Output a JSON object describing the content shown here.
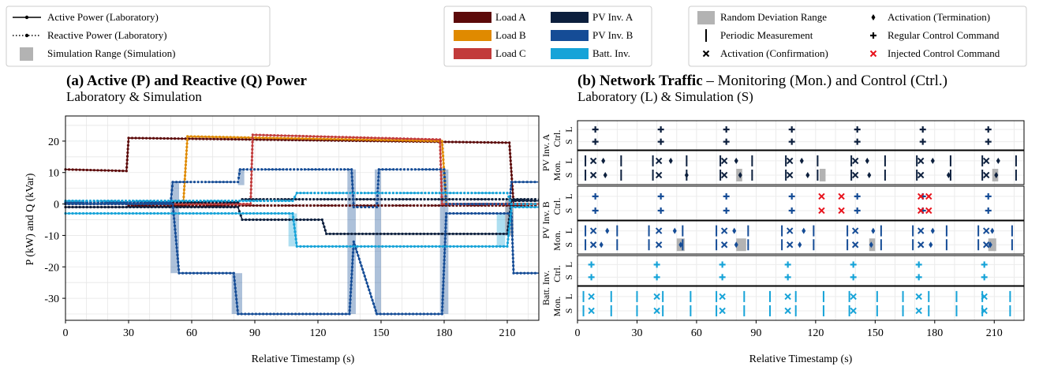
{
  "colors": {
    "load_a": "#5c0a0a",
    "load_b": "#e08a00",
    "load_c": "#c23b3b",
    "pv_a": "#0c1f3d",
    "pv_b": "#154c96",
    "batt": "#16a3d8",
    "range_gray": "#b3b3b3",
    "injected": "#e8121c"
  },
  "legend1": [
    {
      "label": "Active Power (Laboratory)",
      "icon": "solid-line-dot"
    },
    {
      "label": "Reactive Power (Laboratory)",
      "icon": "dotted-line-dot"
    },
    {
      "label": "Simulation Range (Simulation)",
      "icon": "gray-square"
    }
  ],
  "legend2": [
    {
      "label": "Load A",
      "color": "#5c0a0a"
    },
    {
      "label": "Load B",
      "color": "#e08a00"
    },
    {
      "label": "Load C",
      "color": "#c23b3b"
    },
    {
      "label": "PV Inv. A",
      "color": "#0c1f3d"
    },
    {
      "label": "PV Inv. B",
      "color": "#154c96"
    },
    {
      "label": "Batt. Inv.",
      "color": "#16a3d8"
    }
  ],
  "legend3": [
    {
      "label": "Random Deviation Range",
      "icon": "gray-square"
    },
    {
      "label": "Periodic Measurement",
      "icon": "vertical-bar"
    },
    {
      "label": "Activation (Confirmation)",
      "icon": "x-marker"
    },
    {
      "label": "Activation (Termination)",
      "icon": "diamond-marker"
    },
    {
      "label": "Regular Control Command",
      "icon": "plus-marker"
    },
    {
      "label": "Injected Control Command",
      "icon": "red-x-marker"
    }
  ],
  "panel_a": {
    "title": "(a) Active (P) and Reactive (Q) Power",
    "subtitle": "Laboratory & Simulation",
    "ylabel": "P (kW) and Q (kVar)",
    "xlabel": "Relative Timestamp (s)",
    "yticks": [
      "20",
      "10",
      "0",
      "-10",
      "-20",
      "-30"
    ],
    "xticks": [
      "0",
      "30",
      "60",
      "90",
      "120",
      "150",
      "180",
      "210"
    ]
  },
  "panel_b": {
    "title_bold": "(b) Network Traffic",
    "title_rest": " – Monitoring (Mon.) and Control (Ctrl.)",
    "subtitle": "Laboratory (L) & Simulation (S)",
    "xlabel": "Relative Timestamp (s)",
    "xticks": [
      "0",
      "30",
      "60",
      "90",
      "120",
      "150",
      "180",
      "210"
    ],
    "groups": [
      "PV Inv. A",
      "PV Inv. B",
      "Batt. Inv."
    ],
    "row_types": [
      "Ctrl.",
      "Mon.",
      "Ctrl.",
      "Mon.",
      "Ctrl.",
      "Mon."
    ],
    "ls_labels": [
      "S",
      "L"
    ]
  },
  "chart_data": [
    {
      "type": "line",
      "xlim": [
        0,
        225
      ],
      "ylim": [
        -37,
        28
      ],
      "grid": true,
      "series": [
        {
          "name": "Load A",
          "quantity": "P",
          "points": [
            [
              0,
              11
            ],
            [
              29,
              10.5
            ],
            [
              30,
              21
            ],
            [
              211,
              19.5
            ],
            [
              213,
              0
            ],
            [
              225,
              0
            ]
          ]
        },
        {
          "name": "Load A",
          "quantity": "Q",
          "points": [
            [
              0,
              -1
            ],
            [
              29,
              -1
            ],
            [
              30,
              -0.5
            ],
            [
              225,
              -0.5
            ]
          ]
        },
        {
          "name": "Load B",
          "quantity": "P",
          "points": [
            [
              0,
              0
            ],
            [
              56,
              0
            ],
            [
              58,
              21.5
            ],
            [
              179,
              20
            ],
            [
              181,
              0
            ],
            [
              225,
              0
            ]
          ]
        },
        {
          "name": "Load C",
          "quantity": "P",
          "points": [
            [
              0,
              0
            ],
            [
              88,
              0
            ],
            [
              89,
              22
            ],
            [
              178,
              20.5
            ],
            [
              179,
              0
            ],
            [
              225,
              0
            ]
          ]
        },
        {
          "name": "PV Inv. A",
          "quantity": "P",
          "points": [
            [
              0,
              -1
            ],
            [
              82,
              -1
            ],
            [
              84,
              -5
            ],
            [
              122,
              -5
            ],
            [
              124,
              -9.5
            ],
            [
              210,
              -9.5
            ],
            [
              212,
              1
            ],
            [
              225,
              1
            ]
          ]
        },
        {
          "name": "PV Inv. A",
          "quantity": "Q",
          "points": [
            [
              0,
              0.5
            ],
            [
              82,
              0.5
            ],
            [
              84,
              1.5
            ],
            [
              225,
              1.5
            ]
          ]
        },
        {
          "name": "PV Inv. B",
          "quantity": "P",
          "points": [
            [
              0,
              0
            ],
            [
              51,
              0
            ],
            [
              54,
              -22
            ],
            [
              80,
              -22
            ],
            [
              82,
              -35
            ],
            [
              135,
              -35
            ],
            [
              137,
              -12
            ],
            [
              148,
              -35
            ],
            [
              179,
              -35
            ],
            [
              181,
              -3
            ],
            [
              212,
              -3
            ],
            [
              213,
              -22
            ],
            [
              225,
              -22
            ]
          ]
        },
        {
          "name": "PV Inv. B",
          "quantity": "Q",
          "points": [
            [
              0,
              0.5
            ],
            [
              50,
              0.5
            ],
            [
              51,
              7
            ],
            [
              82,
              7
            ],
            [
              83,
              11
            ],
            [
              136,
              11
            ],
            [
              137,
              -1
            ],
            [
              148,
              -1
            ],
            [
              149,
              11
            ],
            [
              180,
              11
            ],
            [
              181,
              0
            ],
            [
              211,
              0
            ],
            [
              212,
              7
            ],
            [
              225,
              7
            ]
          ]
        },
        {
          "name": "Batt. Inv.",
          "quantity": "P",
          "points": [
            [
              0,
              -3
            ],
            [
              108,
              -3
            ],
            [
              110,
              -13.5
            ],
            [
              210,
              -13.5
            ],
            [
              212,
              -1
            ],
            [
              225,
              -1
            ]
          ]
        },
        {
          "name": "Batt. Inv.",
          "quantity": "Q",
          "points": [
            [
              0,
              1
            ],
            [
              108,
              1
            ],
            [
              110,
              3.5
            ],
            [
              210,
              3.5
            ],
            [
              212,
              0
            ],
            [
              225,
              0
            ]
          ]
        }
      ],
      "simulation_ranges": [
        {
          "x0": 50,
          "x1": 54,
          "y0": -22,
          "y1": 7,
          "series": "PV Inv. B"
        },
        {
          "x0": 79,
          "x1": 84,
          "y0": -35,
          "y1": -22,
          "series": "PV Inv. B"
        },
        {
          "x0": 82,
          "x1": 85,
          "y0": 6,
          "y1": 11,
          "series": "PV Inv. B"
        },
        {
          "x0": 106,
          "x1": 110,
          "y0": -13.5,
          "y1": -3,
          "series": "Batt. Inv."
        },
        {
          "x0": 134,
          "x1": 138,
          "y0": -35,
          "y1": 11,
          "series": "PV Inv. B"
        },
        {
          "x0": 147,
          "x1": 150,
          "y0": -35,
          "y1": 11,
          "series": "PV Inv. B"
        },
        {
          "x0": 178,
          "x1": 182,
          "y0": -35,
          "y1": 11,
          "series": "PV Inv. B"
        },
        {
          "x0": 205,
          "x1": 209,
          "y0": -13.5,
          "y1": -3,
          "series": "Batt. Inv."
        },
        {
          "x0": 209,
          "x1": 213,
          "y0": -10,
          "y1": 1,
          "series": "PV Inv. A"
        }
      ]
    },
    {
      "type": "scatter",
      "xlim": [
        0,
        225
      ],
      "grid": true,
      "rows": [
        {
          "group": "PV Inv. A",
          "kind": "Ctrl.",
          "color": "#0c1f3d",
          "L": {
            "plus": [
              9,
              42,
              75,
              108,
              141,
              174,
              207
            ]
          },
          "S": {
            "plus": [
              9,
              42,
              75,
              108,
              141,
              174,
              207
            ]
          }
        },
        {
          "group": "PV Inv. A",
          "kind": "Mon.",
          "color": "#0c1f3d",
          "L": {
            "bars": [
              4,
              22,
              38,
              55,
              72,
              88,
              105,
              121,
              138,
              155,
              171,
              188,
              204,
              221
            ],
            "x": [
              8,
              41,
              74,
              107,
              140,
              173,
              206
            ],
            "diamond": [
              13,
              47,
              80,
              113,
              146,
              179,
              212
            ],
            "ranges": []
          },
          "S": {
            "bars": [
              4,
              22,
              38,
              55,
              72,
              88,
              105,
              121,
              138,
              155,
              171,
              188,
              204,
              221
            ],
            "x": [
              8,
              41,
              74,
              107,
              140,
              173,
              206
            ],
            "diamond": [
              14,
              55,
              82,
              116,
              147,
              187,
              211
            ],
            "ranges": [
              [
                80,
                83
              ],
              [
                122,
                125
              ],
              [
                209,
                212
              ]
            ]
          }
        },
        {
          "group": "PV Inv. B",
          "kind": "Ctrl.",
          "color": "#154c96",
          "L": {
            "plus": [
              9,
              42,
              75,
              108,
              141,
              174,
              207
            ],
            "red": [
              123,
              133,
              173,
              177
            ]
          },
          "S": {
            "plus": [
              9,
              42,
              75,
              108,
              141,
              174,
              207
            ],
            "red": [
              123,
              133,
              173,
              177
            ]
          }
        },
        {
          "group": "PV Inv. B",
          "kind": "Mon.",
          "color": "#154c96",
          "L": {
            "bars": [
              4,
              20,
              36,
              53,
              70,
              86,
              103,
              119,
              136,
              153,
              169,
              186,
              202,
              219
            ],
            "x": [
              8,
              41,
              74,
              107,
              140,
              173,
              206
            ],
            "diamond": [
              15,
              49,
              79,
              114,
              149,
              179,
              209
            ],
            "ranges": []
          },
          "S": {
            "bars": [
              4,
              20,
              36,
              53,
              70,
              86,
              103,
              119,
              136,
              153,
              169,
              186,
              202,
              219
            ],
            "x": [
              8,
              41,
              74,
              107,
              140,
              173,
              206
            ],
            "diamond": [
              12,
              52,
              80,
              112,
              148,
              178,
              208
            ],
            "ranges": [
              [
                50,
                54
              ],
              [
                80,
                85
              ],
              [
                147,
                150
              ],
              [
                207,
                211
              ]
            ]
          }
        },
        {
          "group": "Batt. Inv.",
          "kind": "Ctrl.",
          "color": "#16a3d8",
          "L": {
            "plus": [
              7,
              40,
              73,
              106,
              139,
              172,
              205
            ]
          },
          "S": {
            "plus": [
              7,
              40,
              73,
              106,
              139,
              172,
              205
            ]
          }
        },
        {
          "group": "Batt. Inv.",
          "kind": "Mon.",
          "color": "#16a3d8",
          "L": {
            "bars": [
              3,
              17,
              30,
              43,
              57,
              70,
              84,
              97,
              110,
              124,
              137,
              151,
              164,
              177,
              191,
              204,
              218
            ],
            "x": [
              7,
              40,
              73,
              106,
              139,
              172,
              205
            ],
            "diamond": [],
            "ranges": []
          },
          "S": {
            "bars": [
              3,
              17,
              30,
              43,
              57,
              70,
              84,
              97,
              110,
              124,
              137,
              151,
              164,
              177,
              191,
              204,
              218
            ],
            "x": [
              7,
              40,
              73,
              106,
              139,
              172,
              205
            ],
            "diamond": [],
            "ranges": []
          }
        }
      ]
    }
  ]
}
